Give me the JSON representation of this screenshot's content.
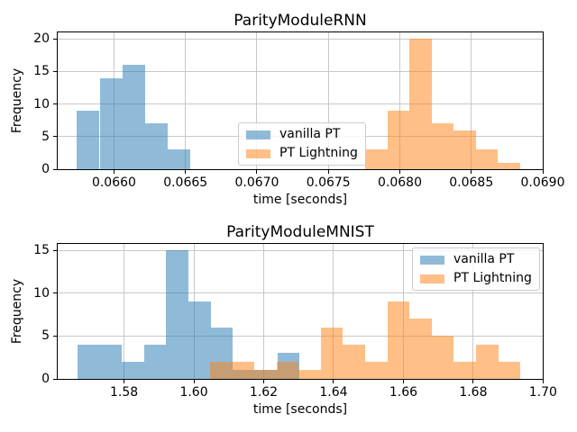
{
  "colors": {
    "vanilla_pt": "#1f77b4",
    "pt_lightning": "#ff7f0e",
    "fill_alpha": 0.5,
    "grid": "#c8c8c8",
    "spine": "#000000",
    "text": "#000000",
    "legend_border": "#cccccc",
    "background": "#ffffff"
  },
  "chart_data": [
    {
      "type": "histogram",
      "title": "ParityModuleRNN",
      "xlabel": "time [seconds]",
      "ylabel": "Frequency",
      "xlim": [
        0.065606,
        0.069
      ],
      "ylim": [
        0,
        21
      ],
      "grid": true,
      "xticks": [
        0.066,
        0.0665,
        0.067,
        0.0675,
        0.068,
        0.0685,
        0.069
      ],
      "xtick_labels": [
        "0.0660",
        "0.0665",
        "0.0670",
        "0.0675",
        "0.0680",
        "0.0685",
        "0.0690"
      ],
      "yticks": [
        0,
        5,
        10,
        15,
        20
      ],
      "ytick_labels": [
        "0",
        "5",
        "10",
        "15",
        "20"
      ],
      "legend": {
        "position": "center",
        "entries": [
          "vanilla PT",
          "PT Lightning"
        ]
      },
      "series": [
        {
          "name": "vanilla PT",
          "color": "#1f77b4",
          "bins_start": 0.065741,
          "bin_width": 0.0001584,
          "counts": [
            9,
            14,
            16,
            7,
            3
          ]
        },
        {
          "name": "PT Lightning",
          "color": "#ff7f0e",
          "bins_start": 0.067757,
          "bin_width": 0.000155,
          "counts": [
            3,
            9,
            20,
            7,
            6,
            3,
            1
          ]
        }
      ]
    },
    {
      "type": "histogram",
      "title": "ParityModuleMNIST",
      "xlabel": "time [seconds]",
      "ylabel": "Frequency",
      "xlim": [
        1.561,
        1.6999
      ],
      "ylim": [
        0,
        15.75
      ],
      "grid": true,
      "xticks": [
        1.58,
        1.6,
        1.62,
        1.64,
        1.66,
        1.68,
        1.7
      ],
      "xtick_labels": [
        "1.58",
        "1.60",
        "1.62",
        "1.64",
        "1.66",
        "1.68",
        "1.70"
      ],
      "yticks": [
        0,
        5,
        10,
        15
      ],
      "ytick_labels": [
        "0",
        "5",
        "10",
        "15"
      ],
      "legend": {
        "position": "upper right",
        "entries": [
          "vanilla PT",
          "PT Lightning"
        ]
      },
      "series": [
        {
          "name": "vanilla PT",
          "color": "#1f77b4",
          "bins_start": 1.5666,
          "bin_width": 0.00637,
          "counts": [
            4,
            4,
            2,
            4,
            15,
            9,
            6,
            1,
            1,
            3
          ]
        },
        {
          "name": "PT Lightning",
          "color": "#ff7f0e",
          "bins_start": 1.6046,
          "bin_width": 0.00635,
          "counts": [
            2,
            2,
            1,
            2,
            1,
            6,
            4,
            2,
            9,
            7,
            5,
            2,
            4,
            2
          ]
        }
      ]
    }
  ]
}
